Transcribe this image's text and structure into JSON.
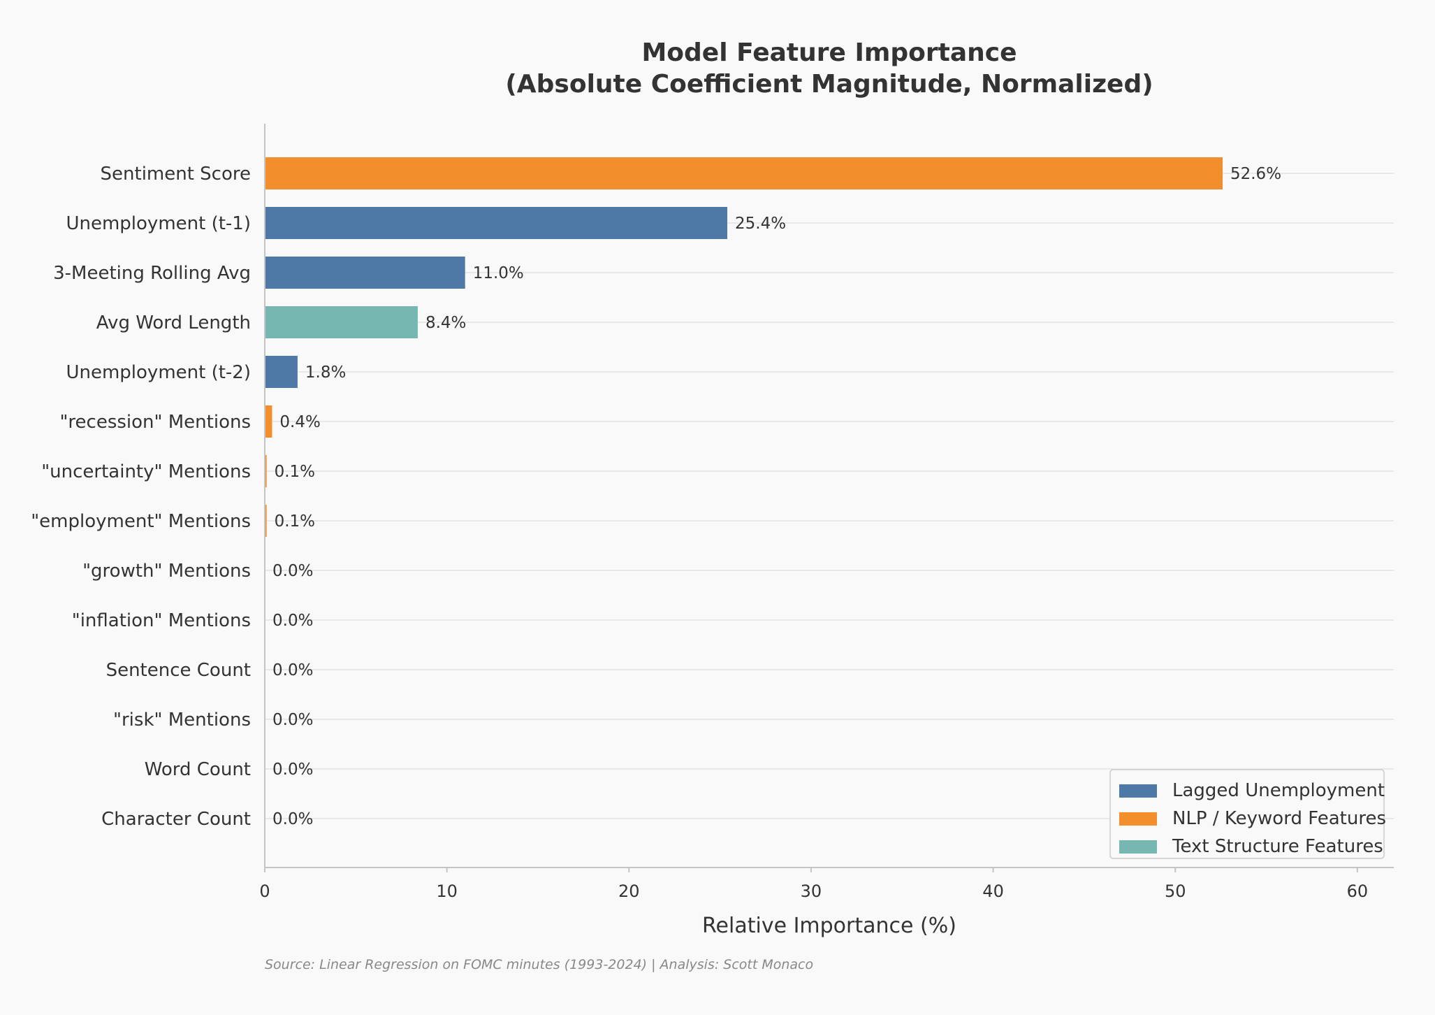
{
  "chart_data": {
    "type": "bar",
    "orientation": "horizontal",
    "title": "Model Feature Importance",
    "subtitle": "(Absolute Coefficient Magnitude, Normalized)",
    "xlabel": "Relative Importance (%)",
    "ylabel": "",
    "xlim": [
      0,
      62
    ],
    "xticks": [
      0,
      10,
      20,
      30,
      40,
      50,
      60
    ],
    "grid": "horizontal",
    "legend_position": "bottom-right",
    "categories": [
      "Sentiment Score",
      "Unemployment (t-1)",
      "3-Meeting Rolling Avg",
      "Avg Word Length",
      "Unemployment (t-2)",
      "\"recession\" Mentions",
      "\"uncertainty\" Mentions",
      "\"employment\" Mentions",
      "\"growth\" Mentions",
      "\"inflation\" Mentions",
      "Sentence Count",
      "\"risk\" Mentions",
      "Word Count",
      "Character Count"
    ],
    "values": [
      52.6,
      25.4,
      11.0,
      8.4,
      1.8,
      0.4,
      0.1,
      0.1,
      0.0,
      0.0,
      0.0,
      0.0,
      0.0,
      0.0
    ],
    "value_labels": [
      "52.6%",
      "25.4%",
      "11.0%",
      "8.4%",
      "1.8%",
      "0.4%",
      "0.1%",
      "0.1%",
      "0.0%",
      "0.0%",
      "0.0%",
      "0.0%",
      "0.0%",
      "0.0%"
    ],
    "groups": [
      "nlp",
      "lagged",
      "lagged",
      "text",
      "lagged",
      "nlp",
      "nlp",
      "nlp",
      "nlp",
      "nlp",
      "text",
      "nlp",
      "text",
      "text"
    ],
    "legend": [
      {
        "key": "lagged",
        "label": "Lagged Unemployment",
        "color": "#4e79a7"
      },
      {
        "key": "nlp",
        "label": "NLP / Keyword Features",
        "color": "#f28e2b"
      },
      {
        "key": "text",
        "label": "Text Structure Features",
        "color": "#76b7b2"
      }
    ],
    "source": "Source: Linear Regression on FOMC minutes (1993-2024) | Analysis: Scott Monaco"
  }
}
